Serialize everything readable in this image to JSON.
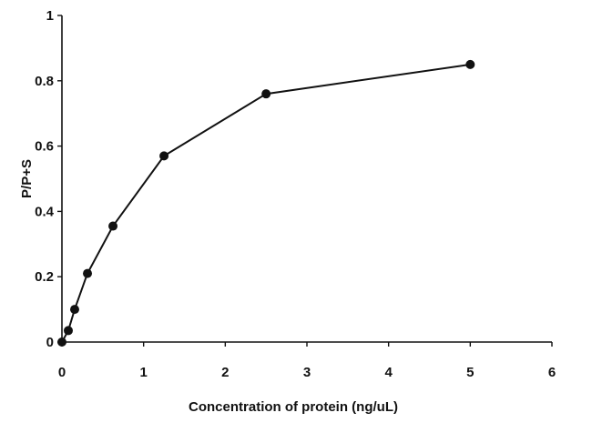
{
  "chart_data": {
    "type": "line",
    "title": "",
    "xlabel": "Concentration of protein (ng/uL)",
    "ylabel": "P/P+S",
    "xlim": [
      0,
      6
    ],
    "ylim": [
      0,
      1
    ],
    "xticks": [
      0,
      1,
      2,
      3,
      4,
      5,
      6
    ],
    "yticks": [
      0,
      0.2,
      0.4,
      0.6,
      0.8,
      1
    ],
    "xtick_labels": [
      "0",
      "1",
      "2",
      "3",
      "4",
      "5",
      "6"
    ],
    "ytick_labels": [
      "0",
      "0.2",
      "0.4",
      "0.6",
      "0.8",
      "1"
    ],
    "grid": false,
    "legend": "none",
    "series": [
      {
        "x": [
          0,
          0.078,
          0.156,
          0.3125,
          0.625,
          1.25,
          2.5,
          5
        ],
        "y": [
          0.0,
          0.035,
          0.1,
          0.21,
          0.355,
          0.57,
          0.76,
          0.85
        ],
        "color": "#111111",
        "marker": "circle"
      }
    ]
  }
}
